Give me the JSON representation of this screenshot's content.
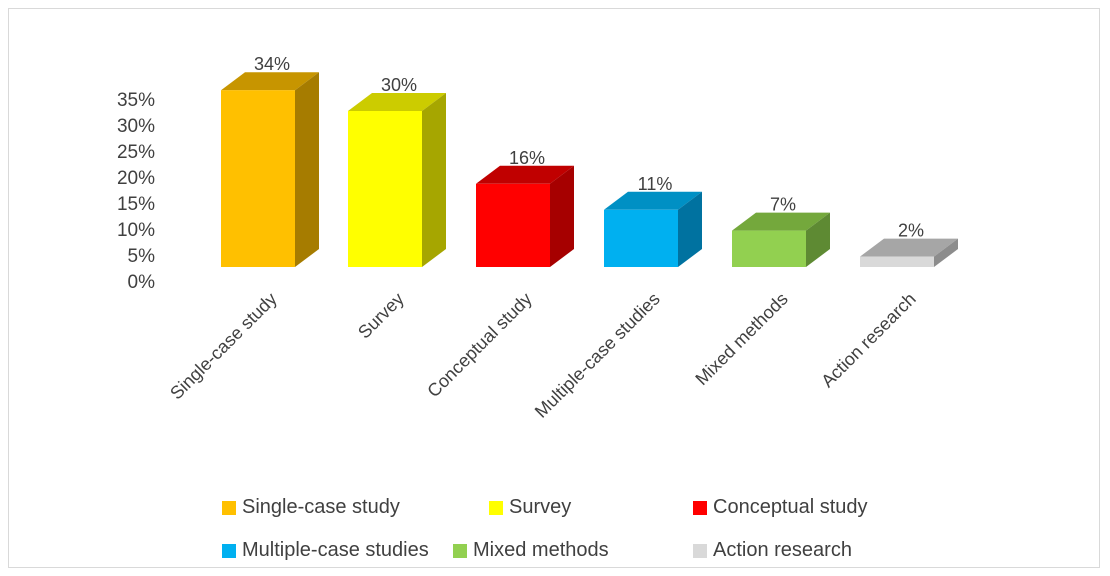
{
  "chart_data": {
    "type": "bar",
    "title": "",
    "xlabel": "",
    "ylabel": "",
    "ylim": [
      0,
      35
    ],
    "y_ticks": [
      "0%",
      "5%",
      "10%",
      "15%",
      "20%",
      "25%",
      "30%",
      "35%"
    ],
    "grid": false,
    "legend_position": "bottom",
    "categories": [
      "Single-case study",
      "Survey",
      "Conceptual study",
      "Multiple-case studies",
      "Mixed methods",
      "Action research"
    ],
    "values": [
      34,
      30,
      16,
      11,
      7,
      2
    ],
    "data_labels": [
      "34%",
      "30%",
      "16%",
      "11%",
      "7%",
      "2%"
    ],
    "colors": [
      "#FFC000",
      "#FFFF00",
      "#FF0000",
      "#00B0F0",
      "#92D050",
      "#D9D9D9"
    ],
    "side_colors": [
      "#A67C00",
      "#A6A600",
      "#A60000",
      "#0072A0",
      "#5E8A33",
      "#8C8C8C"
    ],
    "top_colors": [
      "#C79500",
      "#CCCC00",
      "#C00000",
      "#0090C4",
      "#74A83C",
      "#A6A6A6"
    ]
  },
  "legend": [
    {
      "label": "Single-case study",
      "color": "#FFC000"
    },
    {
      "label": "Survey",
      "color": "#FFFF00"
    },
    {
      "label": "Conceptual study",
      "color": "#FF0000"
    },
    {
      "label": "Multiple-case studies",
      "color": "#00B0F0"
    },
    {
      "label": "Mixed methods",
      "color": "#92D050"
    },
    {
      "label": "Action research",
      "color": "#D9D9D9"
    }
  ]
}
